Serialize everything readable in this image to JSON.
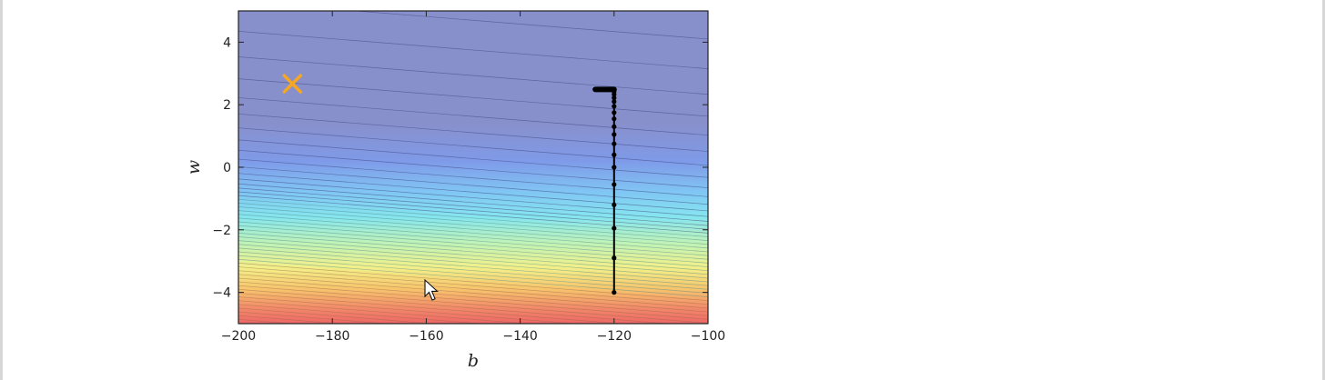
{
  "chart_data": {
    "type": "heatmap",
    "subtype": "filled-contour",
    "title": "",
    "xlabel": "b",
    "ylabel": "w",
    "xlim": [
      -200,
      -100
    ],
    "ylim": [
      -5,
      5
    ],
    "x_ticks": [
      -200,
      -180,
      -160,
      -140,
      -120,
      -100
    ],
    "y_ticks": [
      -4,
      -2,
      0,
      2,
      4
    ],
    "x_tick_labels": [
      "−200",
      "−180",
      "−160",
      "−140",
      "−120",
      "−100"
    ],
    "y_tick_labels": [
      "−4",
      "−2",
      "0",
      "2",
      "4"
    ],
    "colormap": "jet (alpha 0.5)",
    "grid": false,
    "surface": "cost J(b, w) increases toward lower w; contour lines slightly sloped",
    "target_marker": {
      "symbol": "x",
      "color": "#f5a623",
      "b": -188.5,
      "w": 2.67
    },
    "path": {
      "color": "#000000",
      "points": [
        {
          "b": -120,
          "w": -4.0
        },
        {
          "b": -120,
          "w": -2.9
        },
        {
          "b": -120,
          "w": -1.95
        },
        {
          "b": -120,
          "w": -1.2
        },
        {
          "b": -120,
          "w": -0.55
        },
        {
          "b": -120,
          "w": 0.0
        },
        {
          "b": -120,
          "w": 0.4
        },
        {
          "b": -120,
          "w": 0.75
        },
        {
          "b": -120,
          "w": 1.05
        },
        {
          "b": -120,
          "w": 1.3
        },
        {
          "b": -120,
          "w": 1.55
        },
        {
          "b": -120,
          "w": 1.75
        },
        {
          "b": -120,
          "w": 1.95
        },
        {
          "b": -120,
          "w": 2.1
        },
        {
          "b": -120,
          "w": 2.22
        },
        {
          "b": -120,
          "w": 2.33
        },
        {
          "b": -120,
          "w": 2.42
        },
        {
          "b": -120.4,
          "w": 2.48
        },
        {
          "b": -121.0,
          "w": 2.49
        },
        {
          "b": -121.6,
          "w": 2.49
        },
        {
          "b": -122.2,
          "w": 2.49
        },
        {
          "b": -122.8,
          "w": 2.49
        },
        {
          "b": -123.4,
          "w": 2.49
        },
        {
          "b": -124.0,
          "w": 2.49
        }
      ]
    }
  }
}
